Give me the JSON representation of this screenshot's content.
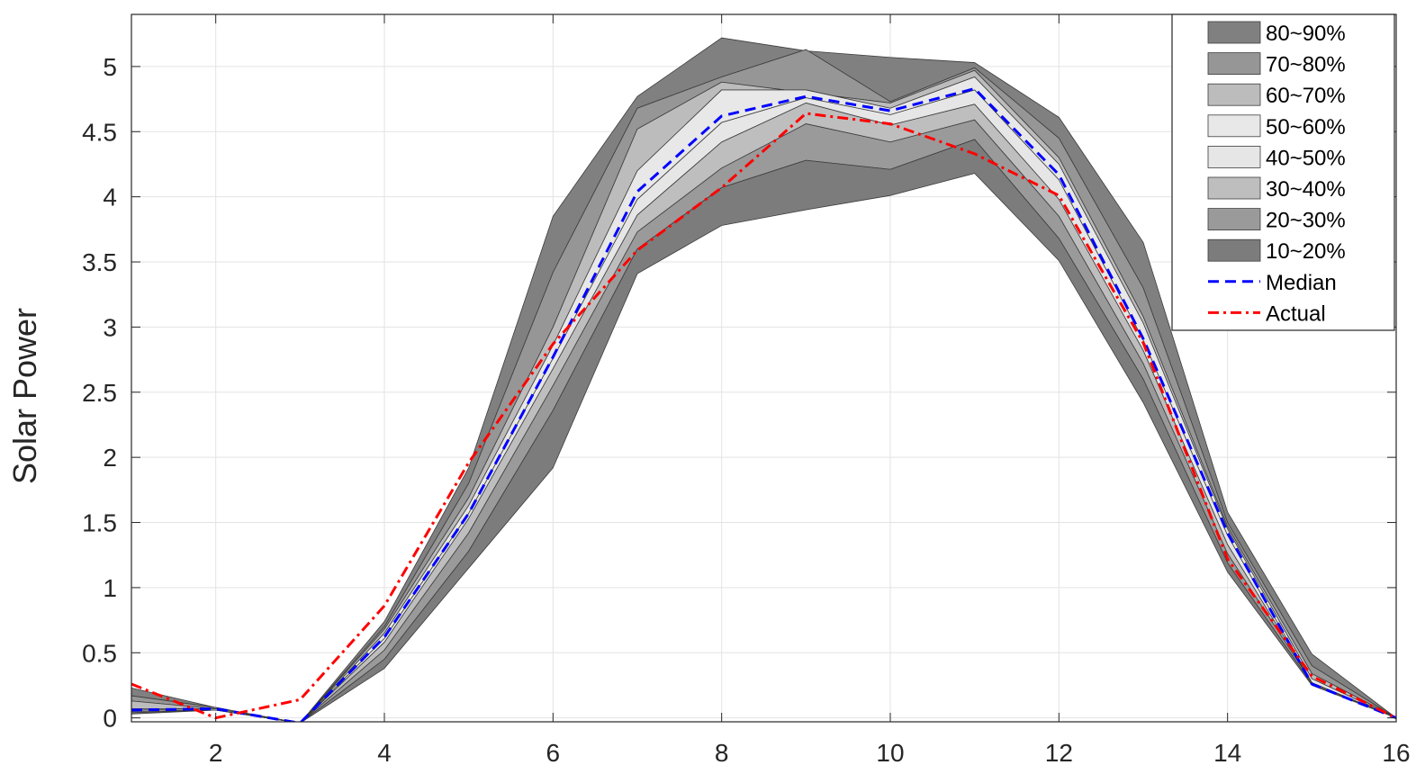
{
  "chart_data": {
    "type": "area",
    "title": "",
    "xlabel": "",
    "ylabel": "Solar Power",
    "xlim": [
      1,
      16
    ],
    "ylim": [
      -0.03,
      5.4
    ],
    "xticks": [
      2,
      4,
      6,
      8,
      10,
      12,
      14,
      16
    ],
    "yticks": [
      0,
      0.5,
      1,
      1.5,
      2,
      2.5,
      3,
      3.5,
      4,
      4.5,
      5
    ],
    "ytick_labels": [
      "0",
      "0.5",
      "1",
      "1.5",
      "2",
      "2.5",
      "3",
      "3.5",
      "4",
      "4.5",
      "5"
    ],
    "grid": true,
    "legend_position": "top-right",
    "x": [
      1,
      2,
      3,
      4,
      5,
      6,
      7,
      8,
      9,
      10,
      11,
      12,
      13,
      14,
      15,
      16
    ],
    "quantiles": {
      "q10": [
        0.03,
        0.06,
        -0.04,
        0.38,
        1.15,
        1.92,
        3.41,
        3.78,
        3.9,
        4.01,
        4.18,
        3.51,
        2.42,
        1.12,
        0.25,
        0.0
      ],
      "q20": [
        0.04,
        0.06,
        -0.04,
        0.45,
        1.28,
        2.36,
        3.6,
        4.07,
        4.28,
        4.21,
        4.44,
        3.68,
        2.6,
        1.19,
        0.26,
        0.0
      ],
      "q30": [
        0.05,
        0.06,
        -0.04,
        0.52,
        1.42,
        2.55,
        3.73,
        4.22,
        4.56,
        4.42,
        4.59,
        3.85,
        2.72,
        1.26,
        0.27,
        0.0
      ],
      "q40": [
        0.05,
        0.06,
        -0.04,
        0.58,
        1.53,
        2.68,
        3.86,
        4.42,
        4.72,
        4.55,
        4.71,
        3.98,
        2.82,
        1.33,
        0.27,
        0.0
      ],
      "q50": [
        0.06,
        0.07,
        -0.04,
        0.61,
        1.57,
        2.76,
        3.98,
        4.57,
        4.76,
        4.63,
        4.82,
        4.13,
        2.9,
        1.4,
        0.27,
        0.0
      ],
      "q60": [
        0.07,
        0.07,
        -0.04,
        0.65,
        1.63,
        2.86,
        4.2,
        4.82,
        4.82,
        4.68,
        4.92,
        4.25,
        3.03,
        1.45,
        0.3,
        0.0
      ],
      "q70": [
        0.13,
        0.07,
        -0.04,
        0.68,
        1.69,
        3.0,
        4.52,
        4.88,
        4.8,
        4.72,
        4.97,
        4.3,
        3.08,
        1.47,
        0.34,
        0.0
      ],
      "q80": [
        0.17,
        0.08,
        -0.04,
        0.7,
        1.8,
        3.42,
        4.68,
        4.92,
        5.13,
        4.73,
        4.99,
        4.45,
        3.3,
        1.5,
        0.4,
        0.0
      ],
      "q90": [
        0.23,
        0.08,
        -0.04,
        0.74,
        1.92,
        3.85,
        4.77,
        5.22,
        5.12,
        5.07,
        5.03,
        4.61,
        3.65,
        1.58,
        0.49,
        0.0
      ]
    },
    "series": [
      {
        "name": "Median",
        "style": "dashed",
        "color": "#0000ff",
        "values": [
          0.06,
          0.07,
          -0.04,
          0.62,
          1.57,
          2.77,
          4.04,
          4.62,
          4.77,
          4.66,
          4.83,
          4.17,
          2.91,
          1.42,
          0.26,
          0.0
        ]
      },
      {
        "name": "Actual",
        "style": "dash-dot",
        "color": "#ff0000",
        "values": [
          0.26,
          0.0,
          0.14,
          0.86,
          1.96,
          2.87,
          3.59,
          4.07,
          4.64,
          4.56,
          4.33,
          4.01,
          2.88,
          1.22,
          0.32,
          0.0
        ]
      }
    ],
    "bands": [
      {
        "name": "80~90%",
        "color": "#808080"
      },
      {
        "name": "70~80%",
        "color": "#969696"
      },
      {
        "name": "60~70%",
        "color": "#bcbcbc"
      },
      {
        "name": "50~60%",
        "color": "#e8e8e8"
      },
      {
        "name": "40~50%",
        "color": "#e6e6e6"
      },
      {
        "name": "30~40%",
        "color": "#bebebe"
      },
      {
        "name": "20~30%",
        "color": "#9a9a9a"
      },
      {
        "name": "10~20%",
        "color": "#7c7c7c"
      }
    ]
  }
}
